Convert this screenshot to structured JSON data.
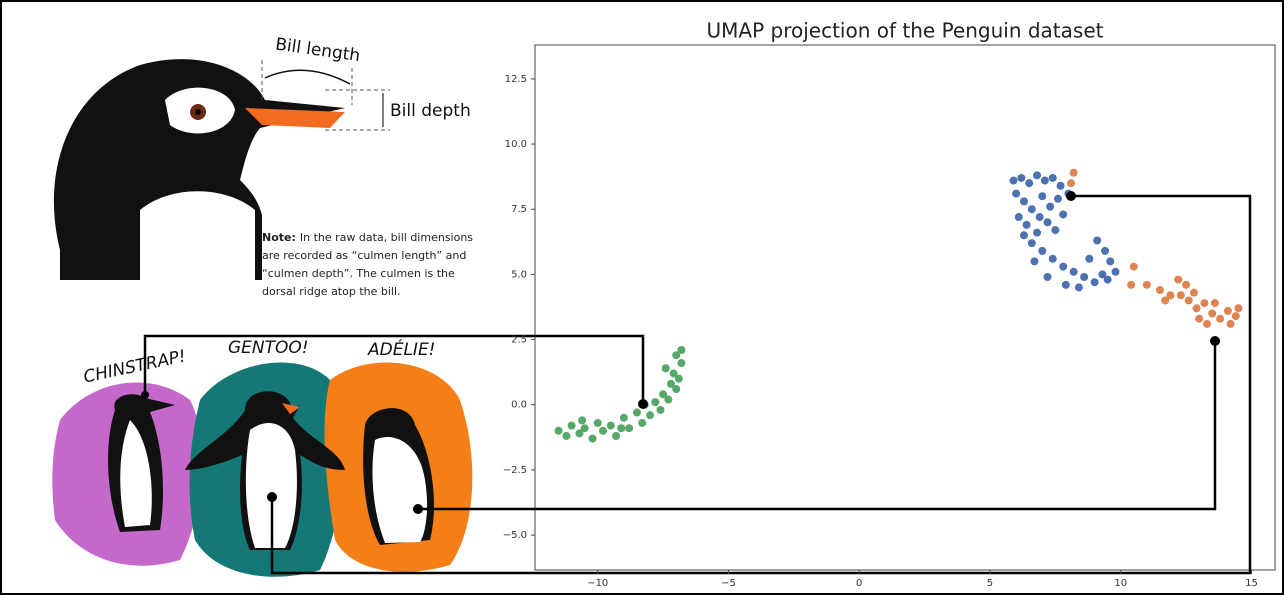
{
  "annotations": {
    "bill_length": "Bill length",
    "bill_depth": "Bill depth",
    "note_label": "Note:",
    "note_lines": [
      "In the raw data, bill dimensions",
      "are recorded as “culmen length” and",
      "“culmen depth”. The culmen is the",
      "dorsal ridge atop the bill."
    ],
    "species": [
      "CHINSTRAP!",
      "GENTOO!",
      "ADÉLIE!"
    ]
  },
  "chart_data": {
    "type": "scatter",
    "title": "UMAP projection of the Penguin dataset",
    "xlim": [
      -12.4,
      15.9
    ],
    "ylim": [
      -6.34,
      13.8
    ],
    "xticks": [
      {
        "value": -10,
        "label": "−10"
      },
      {
        "value": -5,
        "label": "−5"
      },
      0,
      5,
      10,
      15
    ],
    "yticks": [
      {
        "value": -5,
        "label": "−5.0"
      },
      {
        "value": -2.5,
        "label": "−2.5"
      },
      {
        "value": 0,
        "label": "0.0"
      },
      2.5,
      {
        "value": 5,
        "label": "5.0"
      },
      7.5,
      {
        "value": 10,
        "label": "10.0"
      },
      12.5
    ],
    "series": [
      {
        "color": "#4c72b0",
        "x": [
          5.9,
          6.2,
          6.5,
          6.8,
          7.1,
          7.4,
          7.7,
          6.0,
          6.3,
          6.6,
          7.0,
          7.3,
          7.6,
          6.1,
          6.4,
          6.8,
          7.2,
          7.5,
          6.6,
          7.0,
          7.4,
          7.8,
          8.2,
          8.6,
          9.0,
          8.4,
          8.8,
          9.1,
          9.4,
          9.6,
          9.8,
          9.5,
          7.9,
          6.3,
          7.8,
          8.0,
          6.9,
          7.2,
          9.3,
          6.7
        ],
        "values": [
          8.6,
          8.7,
          8.5,
          8.8,
          8.6,
          8.7,
          8.4,
          8.1,
          7.8,
          7.5,
          8.0,
          7.6,
          7.9,
          7.2,
          6.9,
          6.6,
          7.0,
          6.7,
          6.2,
          5.9,
          5.6,
          5.3,
          5.1,
          4.9,
          4.7,
          4.5,
          5.6,
          6.3,
          5.9,
          5.5,
          5.1,
          4.8,
          4.6,
          6.5,
          7.3,
          8.1,
          7.2,
          4.9,
          5.0,
          5.5
        ]
      },
      {
        "color": "#dd8452",
        "x": [
          8.2,
          8.1,
          10.5,
          10.4,
          11.0,
          11.5,
          11.9,
          12.2,
          12.5,
          12.3,
          12.6,
          12.9,
          13.2,
          13.5,
          13.8,
          14.1,
          14.4,
          14.2,
          13.6,
          13.0,
          11.7,
          12.8,
          14.5,
          13.3
        ],
        "values": [
          8.9,
          8.5,
          5.3,
          4.6,
          4.6,
          4.4,
          4.2,
          4.8,
          4.6,
          4.2,
          4.0,
          3.7,
          3.9,
          3.5,
          3.3,
          3.6,
          3.4,
          3.1,
          3.9,
          3.3,
          4.0,
          4.3,
          3.7,
          3.1
        ]
      },
      {
        "color": "#55a868",
        "x": [
          -11.5,
          -11.2,
          -11.0,
          -10.7,
          -10.5,
          -10.2,
          -10.0,
          -9.8,
          -9.5,
          -9.3,
          -9.0,
          -8.8,
          -8.5,
          -8.3,
          -8.0,
          -7.8,
          -7.6,
          -7.5,
          -7.3,
          -7.2,
          -7.0,
          -7.1,
          -6.9,
          -6.8,
          -7.0,
          -6.8,
          -7.4,
          -8.2,
          -9.1,
          -10.6
        ],
        "values": [
          -1.0,
          -1.2,
          -0.8,
          -1.1,
          -0.9,
          -1.3,
          -0.7,
          -1.0,
          -0.8,
          -1.2,
          -0.5,
          -0.9,
          -0.3,
          -0.7,
          -0.4,
          0.1,
          -0.2,
          0.4,
          0.2,
          0.8,
          0.6,
          1.2,
          1.0,
          1.6,
          1.9,
          2.1,
          1.4,
          0.0,
          -0.9,
          -0.6
        ]
      }
    ]
  }
}
